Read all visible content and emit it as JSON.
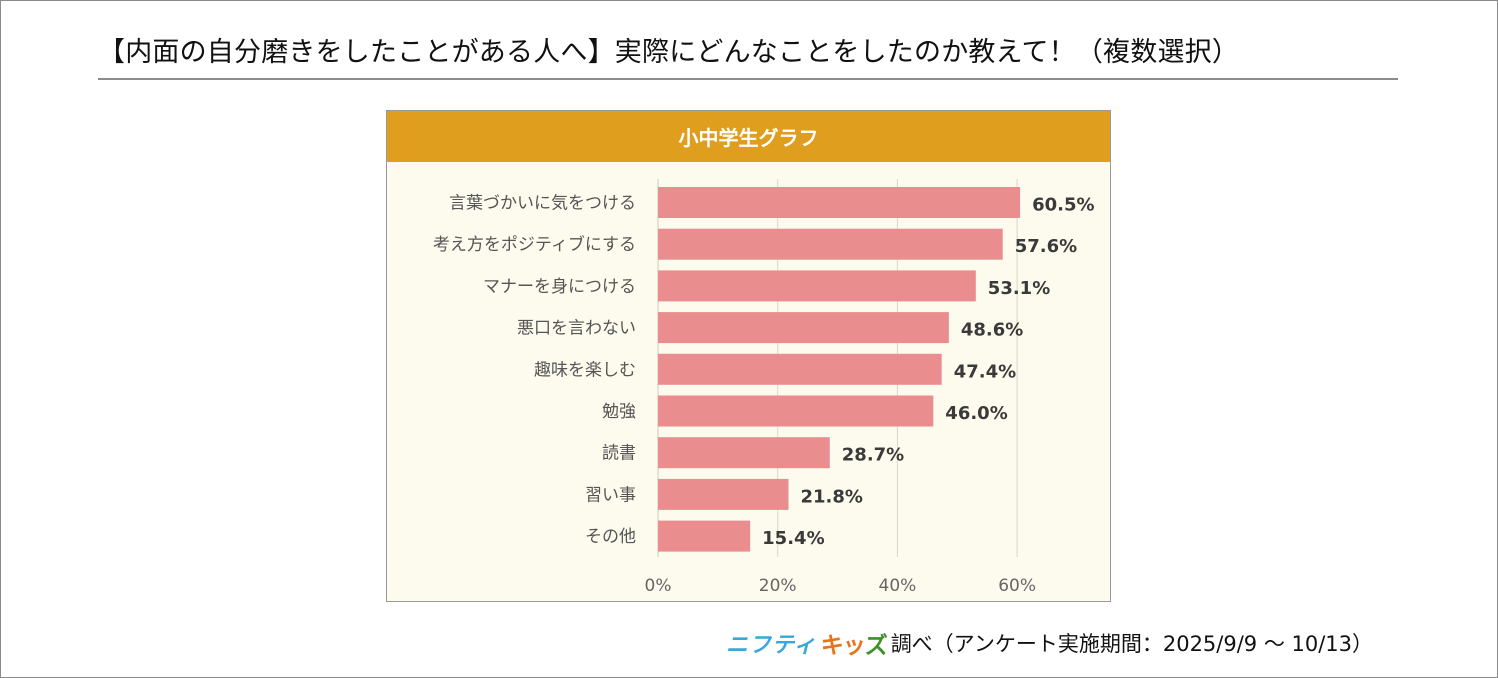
{
  "page": {
    "title": "【内面の自分磨きをしたことがある人へ】実際にどんなことをしたのか教えて！（複数選択）"
  },
  "panel": {
    "header": "小中学生グラフ"
  },
  "footer": {
    "logo_part1": "ニフティ",
    "logo_part2_chars": [
      "キ",
      "ッ",
      "ズ"
    ],
    "text": "調べ（アンケート実施期間：2025/9/9 ～ 10/13）"
  },
  "colors": {
    "header": "#e09e1e",
    "bar": "#e98d8e",
    "panel_bg": "#fdfbee",
    "grid": "#d9d6cc"
  },
  "chart_data": {
    "type": "bar",
    "orientation": "horizontal",
    "title": "小中学生グラフ",
    "xlabel": "",
    "ylabel": "",
    "categories": [
      "言葉づかいに気をつける",
      "考え方をポジティブにする",
      "マナーを身につける",
      "悪口を言わない",
      "趣味を楽しむ",
      "勉強",
      "読書",
      "習い事",
      "その他"
    ],
    "values": [
      60.5,
      57.6,
      53.1,
      48.6,
      47.4,
      46.0,
      28.7,
      21.8,
      15.4
    ],
    "value_labels": [
      "60.5%",
      "57.6%",
      "53.1%",
      "48.6%",
      "47.4%",
      "46.0%",
      "28.7%",
      "21.8%",
      "15.4%"
    ],
    "xlim": [
      0,
      70
    ],
    "xticks": [
      0,
      20,
      40,
      60
    ],
    "xtick_labels": [
      "0%",
      "20%",
      "40%",
      "60%"
    ],
    "grid": true,
    "legend": "none"
  }
}
